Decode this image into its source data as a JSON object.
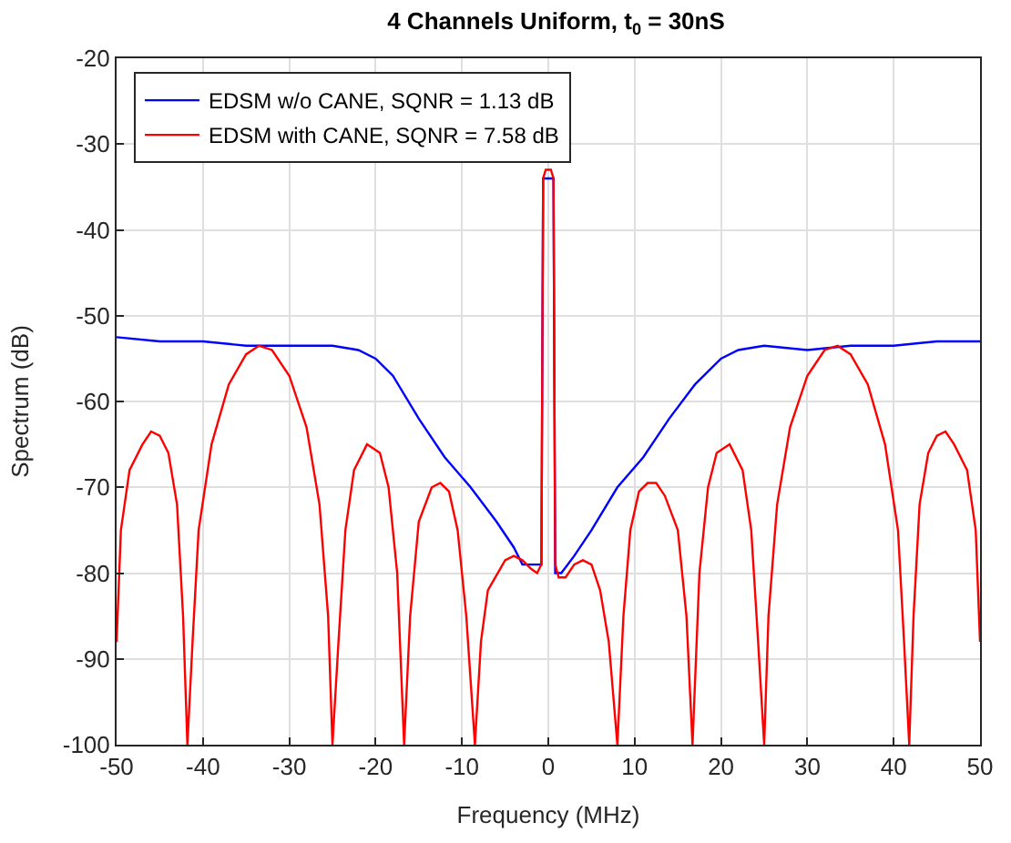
{
  "chart_data": {
    "type": "line",
    "title": "4 Channels Uniform, t$_{0}$ = 30nS",
    "xlabel": "Frequency (MHz)",
    "ylabel": "Spectrum (dB)",
    "xlim": [
      -50,
      50
    ],
    "xticks": [
      -50,
      -40,
      -30,
      -20,
      -10,
      0,
      10,
      20,
      30,
      40,
      50
    ],
    "ylim": [
      -100,
      -20
    ],
    "yticks": [
      -100,
      -90,
      -80,
      -70,
      -60,
      -50,
      -40,
      -30,
      -20
    ],
    "grid": true,
    "legend": "top left",
    "marker": "none",
    "line_style": "solid",
    "series": [
      {
        "name": "EDSM w/o CANE, SQNR = 1.13 dB",
        "color": "#0000ff",
        "x": [
          -50,
          -45,
          -40,
          -35,
          -30,
          -25,
          -22,
          -20,
          -18,
          -15,
          -12,
          -9,
          -6,
          -4,
          -3,
          -1.5,
          -0.8,
          -0.6,
          0.6,
          0.8,
          1.5,
          3,
          5,
          8,
          11,
          14,
          17,
          20,
          22,
          25,
          30,
          35,
          40,
          45,
          50
        ],
        "values": [
          -52.5,
          -53,
          -53,
          -53.5,
          -53.5,
          -53.5,
          -54,
          -55,
          -57,
          -62,
          -66.5,
          -70,
          -74,
          -77,
          -79,
          -79,
          -79,
          -34,
          -34,
          -80,
          -80,
          -78,
          -75,
          -70,
          -66.5,
          -62,
          -58,
          -55,
          -54,
          -53.5,
          -54,
          -53.5,
          -53.5,
          -53,
          -53
        ]
      },
      {
        "name": "EDSM with CANE, SQNR = 7.58 dB",
        "color": "#ff0000",
        "x": [
          -50,
          -49.5,
          -48.5,
          -47,
          -46,
          -45,
          -44,
          -43,
          -42.3,
          -41.8,
          -41.2,
          -40.5,
          -39,
          -37,
          -35,
          -33.5,
          -32,
          -30,
          -28,
          -26.5,
          -25.5,
          -25,
          -24.3,
          -23.5,
          -22.5,
          -21,
          -19.5,
          -18.5,
          -17.5,
          -16.7,
          -16,
          -15,
          -13.5,
          -12.5,
          -11.5,
          -10.5,
          -9.5,
          -8.5,
          -7.8,
          -7,
          -5,
          -4,
          -3,
          -2,
          -1.3,
          -0.8,
          -0.6,
          -0.3,
          0.3,
          0.6,
          0.8,
          1.2,
          2,
          3,
          4,
          5,
          6,
          7,
          8,
          8.7,
          9.5,
          10.5,
          11.5,
          12.5,
          13.5,
          15,
          16,
          16.7,
          17.5,
          18.5,
          19.5,
          21,
          22.5,
          23.5,
          24.3,
          25,
          25.5,
          26.5,
          28,
          30,
          32,
          33.5,
          35,
          37,
          39,
          40.5,
          41.2,
          41.8,
          42.3,
          43,
          44,
          45,
          46,
          47,
          48.5,
          49.5,
          50
        ],
        "values": [
          -88,
          -75,
          -68,
          -65,
          -63.5,
          -64,
          -66,
          -72,
          -85,
          -100,
          -88,
          -75,
          -65,
          -58,
          -54.5,
          -53.5,
          -54,
          -57,
          -63,
          -72,
          -85,
          -100,
          -88,
          -75,
          -68,
          -65,
          -66,
          -70,
          -80,
          -100,
          -85,
          -74,
          -70,
          -69.5,
          -70.5,
          -75,
          -85,
          -100,
          -88,
          -82,
          -78.5,
          -78,
          -78.5,
          -79.5,
          -80,
          -79,
          -34,
          -33,
          -33,
          -34,
          -79,
          -80.5,
          -80.5,
          -79,
          -78.5,
          -79,
          -82,
          -88,
          -100,
          -85,
          -75,
          -70.5,
          -69.5,
          -69.5,
          -71,
          -75,
          -85,
          -100,
          -80,
          -70,
          -66,
          -65,
          -68,
          -75,
          -88,
          -100,
          -85,
          -72,
          -63,
          -57,
          -54,
          -53.5,
          -54.5,
          -58,
          -65,
          -75,
          -88,
          -100,
          -85,
          -72,
          -66,
          -64,
          -63.5,
          -65,
          -68,
          -75,
          -88
        ]
      }
    ]
  }
}
